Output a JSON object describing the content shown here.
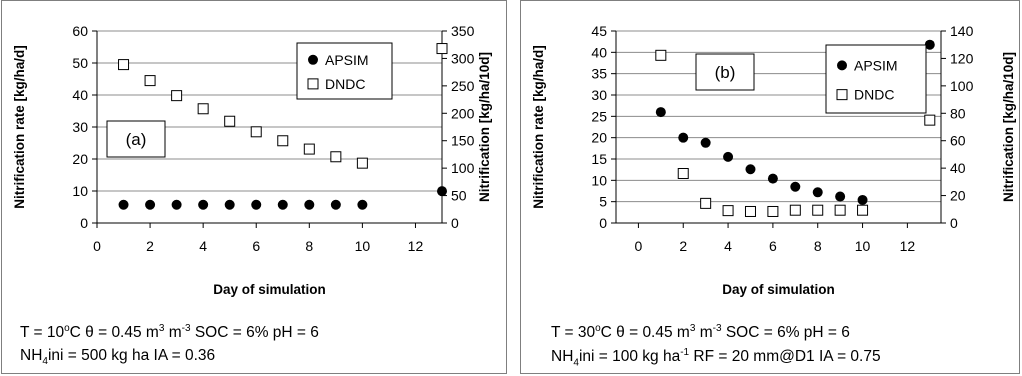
{
  "chart_data": [
    {
      "type": "scatter",
      "panel_label": "(a)",
      "xlabel": "Day of simulation",
      "ylabel": "Nitrification rate [kg/ha/d]",
      "y2label": "Nitrification [kg/ha/10d]",
      "xlim": [
        0,
        13
      ],
      "ylim": [
        0,
        60
      ],
      "y2lim": [
        0,
        350
      ],
      "xticks": [
        "0",
        "2",
        "4",
        "6",
        "8",
        "10",
        "12"
      ],
      "yticks": [
        "0",
        "10",
        "20",
        "30",
        "40",
        "50",
        "60"
      ],
      "y2ticks": [
        "0",
        "50",
        "100",
        "150",
        "200",
        "250",
        "300",
        "350"
      ],
      "legend_position": "top-right",
      "series": [
        {
          "name": "APSIM",
          "marker": "filled-circle",
          "color": "#000000",
          "x": [
            1,
            2,
            3,
            4,
            5,
            6,
            7,
            8,
            9,
            10
          ],
          "y": [
            5.7,
            5.7,
            5.7,
            5.7,
            5.7,
            5.7,
            5.7,
            5.7,
            5.7,
            5.7
          ]
        },
        {
          "name": "DNDC",
          "marker": "open-square",
          "color": "#000000",
          "x": [
            1,
            2,
            3,
            4,
            5,
            6,
            7,
            8,
            9,
            10
          ],
          "y": [
            49.5,
            44.5,
            39.8,
            35.7,
            31.8,
            28.5,
            25.7,
            23.1,
            20.7,
            18.7
          ]
        }
      ],
      "totals": {
        "apsim_10d": 58,
        "dndc_10d": 318
      },
      "caption": {
        "line1_pre": "T = 10",
        "line1_sup": "o",
        "line1_mid": "C  θ = 0.45 m",
        "line1_sup2": "3",
        "line1_mid2": " m",
        "line1_sup3": "-3",
        "line1_post": "  SOC = 6%  pH = 6",
        "line2_pre": "NH",
        "line2_sub": "4",
        "line2_post": "ini = 500 kg ha    IA = 0.36"
      }
    },
    {
      "type": "scatter",
      "panel_label": "(b)",
      "xlabel": "Day of simulation",
      "ylabel": "Nitrification rate [kg/ha/d]",
      "y2label": "Nitrification [kg/ha/10d]",
      "xlim": [
        -1,
        13.5
      ],
      "ylim": [
        0,
        45
      ],
      "y2lim": [
        0,
        140
      ],
      "xticks": [
        "0",
        "2",
        "4",
        "6",
        "8",
        "10",
        "12"
      ],
      "yticks": [
        "0",
        "5",
        "10",
        "15",
        "20",
        "25",
        "30",
        "35",
        "40",
        "45"
      ],
      "y2ticks": [
        "0",
        "20",
        "40",
        "60",
        "80",
        "100",
        "120",
        "140"
      ],
      "legend_position": "top-right",
      "series": [
        {
          "name": "APSIM",
          "marker": "filled-circle",
          "color": "#000000",
          "x": [
            1,
            2,
            3,
            4,
            5,
            6,
            7,
            8,
            9,
            10
          ],
          "y": [
            26,
            20,
            18.8,
            15.5,
            12.6,
            10.4,
            8.5,
            7.2,
            6.2,
            5.4
          ]
        },
        {
          "name": "DNDC",
          "marker": "open-square",
          "color": "#000000",
          "x": [
            1,
            2,
            3,
            4,
            5,
            6,
            7,
            8,
            9,
            10
          ],
          "y": [
            39.3,
            11.6,
            4.6,
            2.9,
            2.7,
            2.7,
            3.0,
            3.0,
            3.0,
            3.0
          ]
        }
      ],
      "totals": {
        "apsim_10d": 130,
        "dndc_10d": 75
      },
      "caption": {
        "line1_pre": "T = 30",
        "line1_sup": "o",
        "line1_mid": "C  θ = 0.45 m",
        "line1_sup2": "3",
        "line1_mid2": " m",
        "line1_sup3": "-3",
        "line1_post": "  SOC = 6%  pH = 6",
        "line2_pre": "NH",
        "line2_sub": "4",
        "line2_mid": "ini = 100 kg ha",
        "line2_sup": "-1",
        "line2_post": "  RF = 20 mm@D1  IA = 0.75"
      }
    }
  ]
}
